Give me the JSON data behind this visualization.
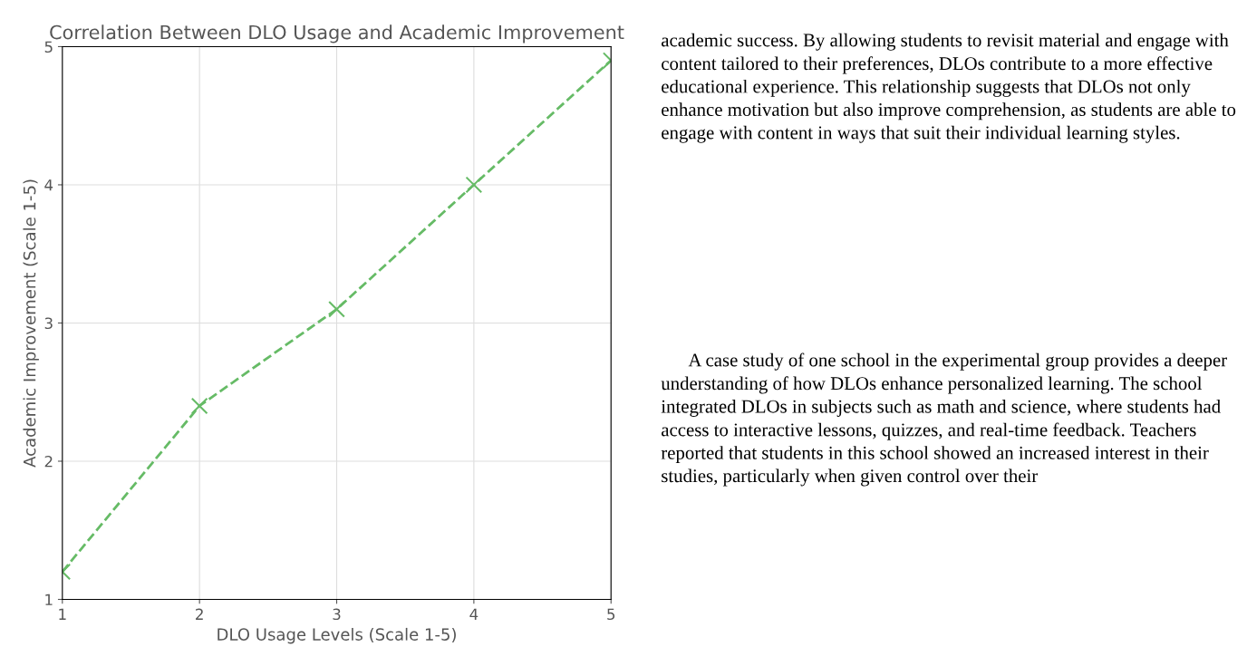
{
  "chart_data": {
    "type": "line",
    "title": "Correlation Between DLO Usage and Academic Improvement",
    "xlabel": "DLO Usage Levels (Scale 1-5)",
    "ylabel": "Academic Improvement (Scale 1-5)",
    "x": [
      1,
      2,
      3,
      4,
      5
    ],
    "series": [
      {
        "color": "#66bb66",
        "values": [
          1.2,
          2.4,
          3.1,
          4.0,
          4.9
        ]
      }
    ],
    "xlim": [
      1,
      5
    ],
    "ylim": [
      1,
      5
    ],
    "xticks": [
      1,
      2,
      3,
      4,
      5
    ],
    "yticks": [
      1,
      2,
      3,
      4,
      5
    ],
    "grid": true,
    "marker": "cross",
    "line_style": "dashed",
    "annotations": [
      "academic success. By allowing students to revisit material and engage with content tailored to their preferences, DLOs contribute to a more effective educational experience. This relationship suggests that DLOs not only enhance motivation but also improve comprehension, as students are able to engage with content in ways that suit their individual learning styles.",
      "A case study of one school in the experimental group provides a deeper understanding of how DLOs enhance personalized learning. The school integrated DLOs in subjects such as math and science, where students had access to interactive lessons, quizzes, and real-time feedback. Teachers reported that students in this school showed an increased interest in their studies, particularly when given control over their"
    ]
  }
}
